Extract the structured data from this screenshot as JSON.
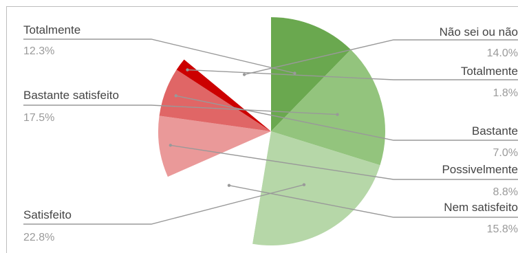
{
  "chart_data": {
    "type": "pie",
    "title": "",
    "slices": [
      {
        "label": "Totalmente",
        "value": 12.3,
        "value_label": "12.3%",
        "color": "#6aa84f",
        "shown": true
      },
      {
        "label": "Bastante satisfeito",
        "value": 17.5,
        "value_label": "17.5%",
        "color": "#93c47d",
        "shown": true
      },
      {
        "label": "Satisfeito",
        "value": 22.8,
        "value_label": "22.8%",
        "color": "#b6d7a8",
        "shown": true
      },
      {
        "label": "Nem satisfeito",
        "value": 15.8,
        "value_label": "15.8%",
        "color": "#ffffff",
        "shown": false
      },
      {
        "label": "Possivelmente",
        "value": 8.8,
        "value_label": "8.8%",
        "color": "#ea9999",
        "shown": true
      },
      {
        "label": "Bastante",
        "value": 7.0,
        "value_label": "7.0%",
        "color": "#e06666",
        "shown": true
      },
      {
        "label": "Totalmente",
        "value": 1.8,
        "value_label": "1.8%",
        "color": "#cc0000",
        "shown": true
      },
      {
        "label": "Não sei ou não",
        "value": 14.0,
        "value_label": "14.0%",
        "color": "#ffffff",
        "shown": false
      }
    ],
    "legend": "none",
    "border_color": "#bdbdbd",
    "leader_color": "#999999"
  }
}
